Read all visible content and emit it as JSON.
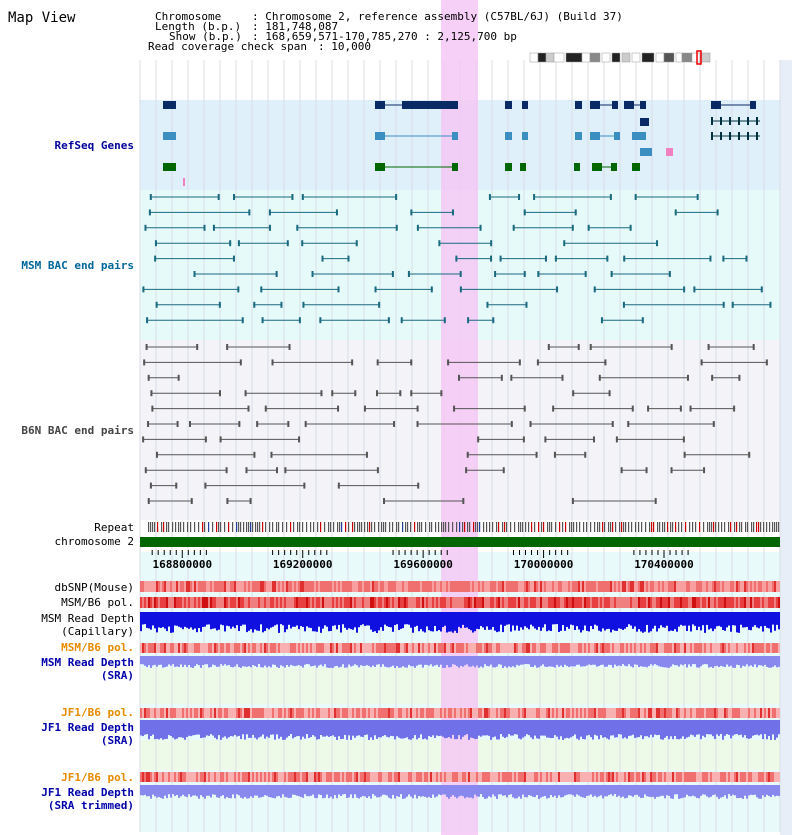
{
  "title": "Map View",
  "info": {
    "chromosome_key": "Chromosome",
    "chromosome_val": "Chromosome 2, reference assembly (C57BL/6J) (Build 37)",
    "length_key": "Length (b.p.)",
    "length_val": "181,748,087",
    "show_key": "Show (b.p.)",
    "show_val": "168,659,571-170,785,270 : 2,125,700 bp",
    "coverage_key": "Read coverage check span",
    "coverage_val": "10,000"
  },
  "tracks": {
    "refseq": "RefSeq Genes",
    "msm_bac": "MSM BAC end pairs",
    "b6n_bac": "B6N BAC end pairs",
    "repeat": "Repeat",
    "chromosome": "chromosome 2",
    "dbsnp": "dbSNP(Mouse)",
    "msm_b6_pol": "MSM/B6 pol.",
    "msm_depth_cap_1": "MSM Read Depth",
    "msm_depth_cap_2": "(Capillary)",
    "msm_b6_pol_2": "MSM/B6 pol.",
    "msm_depth_sra_1": "MSM Read Depth",
    "msm_depth_sra_2": "(SRA)",
    "jf1_b6_pol": "JF1/B6 pol.",
    "jf1_depth_sra_1": "JF1 Read Depth",
    "jf1_depth_sra_2": "(SRA)",
    "jf1_b6_pol_2": "JF1/B6 pol.",
    "jf1_depth_trim_1": "JF1 Read Depth",
    "jf1_depth_trim_2": "(SRA trimmed)"
  },
  "axis": {
    "ticks": [
      "168800000",
      "169200000",
      "169600000",
      "170000000",
      "170400000"
    ],
    "range_start": 168659571,
    "range_end": 170785270
  },
  "colors": {
    "refseq_label": "#000099",
    "msm_label": "#006699",
    "b6n_label": "#444444",
    "pol_orange": "#e68a00",
    "depth_blue": "#0000aa",
    "highlight": "#f4c8f4",
    "gene_dark": "#0a2a66",
    "gene_mid": "#3a8fc0",
    "gene_green": "#006600",
    "bac_msm": "#1a6a80",
    "bac_b6n": "#555555",
    "chromosome_bar": "#006600"
  }
}
